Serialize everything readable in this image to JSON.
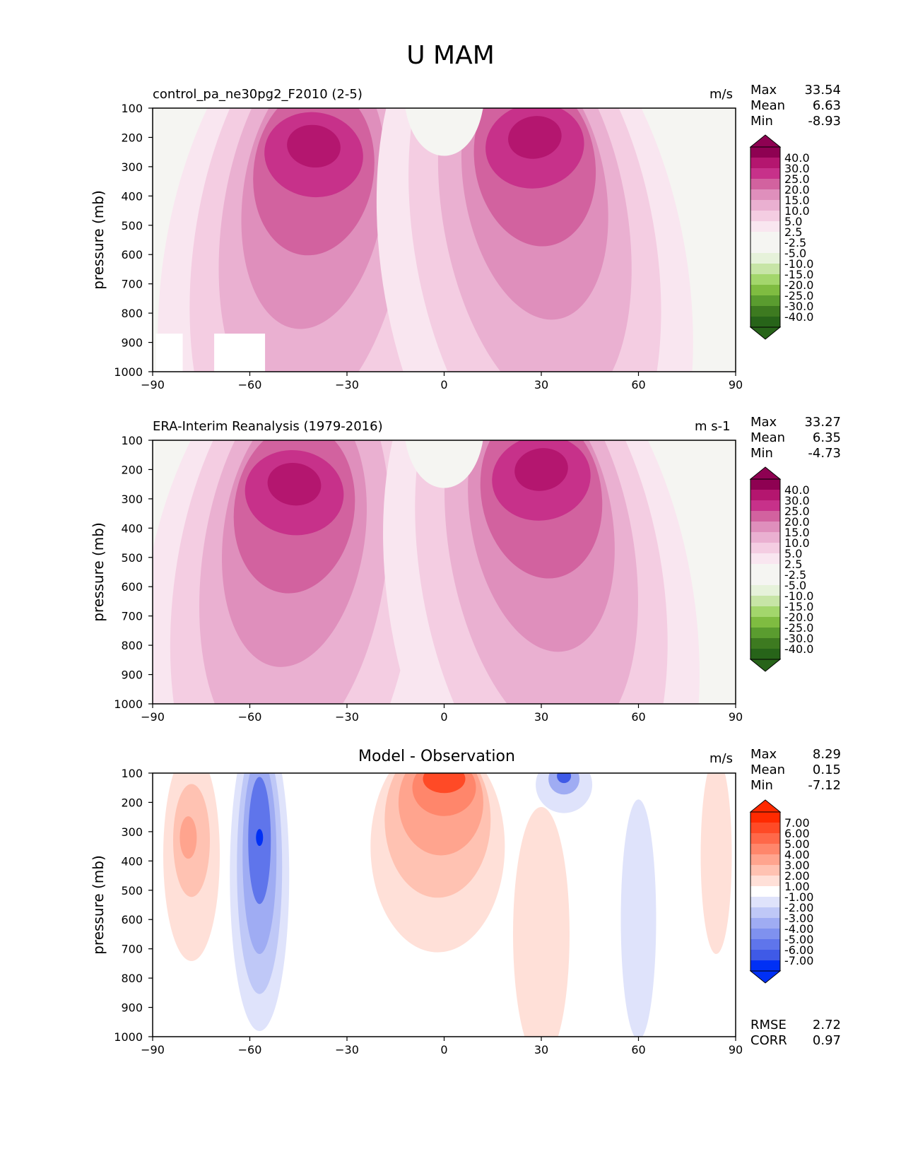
{
  "figure_title": "U MAM",
  "colors": {
    "pos_ramp": [
      "#f5f5f2",
      "#f9e6f0",
      "#f4cde2",
      "#eab0d1",
      "#df8fbc",
      "#d2629f",
      "#c7318a",
      "#b4166f",
      "#8e0152"
    ],
    "neg_ramp": [
      "#f5f5f2",
      "#e6f2da",
      "#c7e5a6",
      "#a3d66c",
      "#7fbc41",
      "#5a9c2f",
      "#3d7a20",
      "#276419"
    ],
    "diff_pos": [
      "#ffffff",
      "#ffe0d8",
      "#ffc2b2",
      "#ffa48e",
      "#ff866b",
      "#ff6849",
      "#ff4a26",
      "#ff2a00"
    ],
    "diff_neg": [
      "#ffffff",
      "#dfe3fb",
      "#bfc8f7",
      "#9facf3",
      "#7f91ef",
      "#5f75eb",
      "#3f5ae7",
      "#0030f5"
    ]
  },
  "chart_data": [
    {
      "type": "heatmap",
      "title": "control_pa_ne30pg2_F2010 (2-5)",
      "units": "m/s",
      "ylabel": "pressure (mb)",
      "xlim": [
        -90,
        90
      ],
      "ylim": [
        1000,
        100
      ],
      "xticks": [
        "−90",
        "−60",
        "−30",
        "0",
        "30",
        "60",
        "90"
      ],
      "yticks": [
        "100",
        "200",
        "300",
        "400",
        "500",
        "600",
        "700",
        "800",
        "900",
        "1000"
      ],
      "stats": [
        {
          "label": "Max",
          "value": "33.54"
        },
        {
          "label": "Mean",
          "value": "6.63"
        },
        {
          "label": "Min",
          "value": "-8.93"
        }
      ],
      "colorbar_labels": [
        "40.0",
        "30.0",
        "25.0",
        "20.0",
        "15.0",
        "10.0",
        "5.0",
        "2.5",
        "-2.5",
        "-5.0",
        "-10.0",
        "-15.0",
        "-20.0",
        "-25.0",
        "-30.0",
        "-40.0"
      ],
      "jets": [
        {
          "lat": -42,
          "p": 230,
          "peak": 33.5
        },
        {
          "lat": 28,
          "p": 200,
          "peak": 33
        }
      ]
    },
    {
      "type": "heatmap",
      "title": "ERA-Interim Reanalysis (1979-2016)",
      "units": "m s-1",
      "ylabel": "pressure (mb)",
      "xlim": [
        -90,
        90
      ],
      "ylim": [
        1000,
        100
      ],
      "xticks": [
        "−90",
        "−60",
        "−30",
        "0",
        "30",
        "60",
        "90"
      ],
      "yticks": [
        "100",
        "200",
        "300",
        "400",
        "500",
        "600",
        "700",
        "800",
        "900",
        "1000"
      ],
      "stats": [
        {
          "label": "Max",
          "value": "33.27"
        },
        {
          "label": "Mean",
          "value": "6.35"
        },
        {
          "label": "Min",
          "value": "-4.73"
        }
      ],
      "colorbar_labels": [
        "40.0",
        "30.0",
        "25.0",
        "20.0",
        "15.0",
        "10.0",
        "5.0",
        "2.5",
        "-2.5",
        "-5.0",
        "-10.0",
        "-15.0",
        "-20.0",
        "-25.0",
        "-30.0",
        "-40.0"
      ],
      "jets": [
        {
          "lat": -48,
          "p": 250,
          "peak": 33
        },
        {
          "lat": 30,
          "p": 200,
          "peak": 33
        }
      ]
    },
    {
      "type": "heatmap",
      "title": "Model - Observation",
      "units": "m/s",
      "ylabel": "pressure (mb)",
      "xlim": [
        -90,
        90
      ],
      "ylim": [
        1000,
        100
      ],
      "xticks": [
        "−90",
        "−60",
        "−30",
        "0",
        "30",
        "60",
        "90"
      ],
      "yticks": [
        "100",
        "200",
        "300",
        "400",
        "500",
        "600",
        "700",
        "800",
        "900",
        "1000"
      ],
      "stats": [
        {
          "label": "Max",
          "value": "8.29"
        },
        {
          "label": "Mean",
          "value": "0.15"
        },
        {
          "label": "Min",
          "value": "-7.12"
        }
      ],
      "extra_stats": [
        {
          "label": "RMSE",
          "value": "2.72"
        },
        {
          "label": "CORR",
          "value": "0.97"
        }
      ],
      "colorbar_labels": [
        "7.00",
        "6.00",
        "5.00",
        "4.00",
        "3.00",
        "2.00",
        "1.00",
        "-1.00",
        "-2.00",
        "-3.00",
        "-4.00",
        "-5.00",
        "-6.00",
        "-7.00"
      ]
    }
  ]
}
